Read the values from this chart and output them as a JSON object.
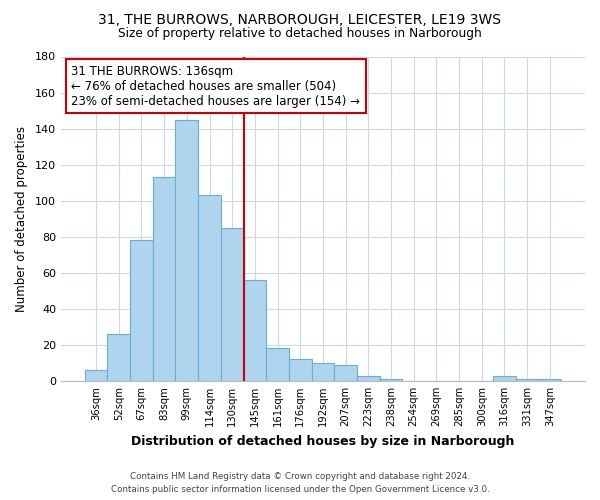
{
  "title": "31, THE BURROWS, NARBOROUGH, LEICESTER, LE19 3WS",
  "subtitle": "Size of property relative to detached houses in Narborough",
  "xlabel": "Distribution of detached houses by size in Narborough",
  "ylabel": "Number of detached properties",
  "bar_labels": [
    "36sqm",
    "52sqm",
    "67sqm",
    "83sqm",
    "99sqm",
    "114sqm",
    "130sqm",
    "145sqm",
    "161sqm",
    "176sqm",
    "192sqm",
    "207sqm",
    "223sqm",
    "238sqm",
    "254sqm",
    "269sqm",
    "285sqm",
    "300sqm",
    "316sqm",
    "331sqm",
    "347sqm"
  ],
  "bar_values": [
    6,
    26,
    78,
    113,
    145,
    103,
    85,
    56,
    18,
    12,
    10,
    9,
    3,
    1,
    0,
    0,
    0,
    0,
    3,
    1,
    1
  ],
  "bar_color": "#aed4ee",
  "bar_edge_color": "#6aaed6",
  "ylim": [
    0,
    180
  ],
  "yticks": [
    0,
    20,
    40,
    60,
    80,
    100,
    120,
    140,
    160,
    180
  ],
  "vline_x_index": 6.5,
  "vline_color": "#cc0000",
  "annotation_line1": "31 THE BURROWS: 136sqm",
  "annotation_line2": "← 76% of detached houses are smaller (504)",
  "annotation_line3": "23% of semi-detached houses are larger (154) →",
  "annotation_box_color": "#ffffff",
  "annotation_box_edge_color": "#cc0000",
  "footer_line1": "Contains HM Land Registry data © Crown copyright and database right 2024.",
  "footer_line2": "Contains public sector information licensed under the Open Government Licence v3.0.",
  "background_color": "#ffffff",
  "grid_color": "#ccd8e8"
}
